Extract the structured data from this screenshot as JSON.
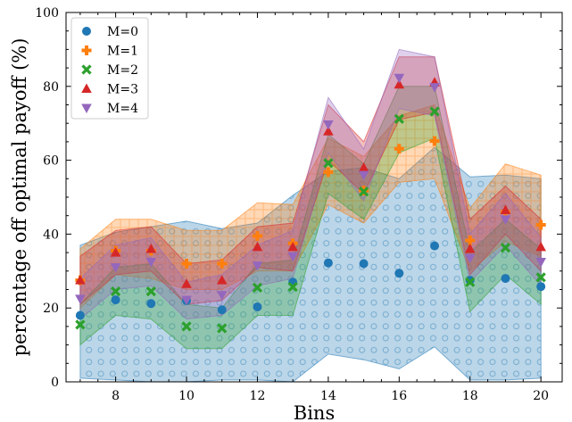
{
  "chart_data": {
    "type": "scatter",
    "xlabel": "Bins",
    "ylabel": "percentage off optimal payoff (%)",
    "xlim": [
      6.6,
      20.6
    ],
    "ylim": [
      0,
      100
    ],
    "xticks": [
      8,
      10,
      12,
      14,
      16,
      18,
      20
    ],
    "yticks": [
      0,
      20,
      40,
      60,
      80,
      100
    ],
    "x": [
      7,
      8,
      9,
      10,
      11,
      12,
      13,
      14,
      15,
      16,
      17,
      18,
      19,
      20
    ],
    "legend_position": "top-left",
    "grid": false,
    "series": [
      {
        "name": "M=0",
        "color": "#1f77b4",
        "marker": "circle",
        "values": [
          18,
          22.2,
          21.2,
          22,
          19.5,
          20.3,
          27,
          32.2,
          32,
          29.4,
          36.8,
          27.5,
          28,
          25.8
        ],
        "lower": [
          1,
          0.5,
          0,
          0,
          0.5,
          0.5,
          0,
          7.5,
          6,
          3.5,
          9.5,
          0.5,
          0.5,
          1
        ],
        "upper": [
          37,
          40.5,
          42,
          43.5,
          41.5,
          43,
          50.5,
          57,
          58,
          55,
          63.5,
          55.5,
          56,
          55
        ]
      },
      {
        "name": "M=1",
        "color": "#ff7f0e",
        "marker": "plus",
        "values": [
          27.5,
          35.5,
          35.5,
          32,
          32,
          39.5,
          37.5,
          56.8,
          51.8,
          63.1,
          65.2,
          38.3,
          46,
          42.5
        ],
        "lower": [
          20,
          29,
          28,
          25,
          25,
          30,
          30,
          48,
          43,
          54,
          55,
          30,
          38,
          34
        ],
        "upper": [
          36,
          44,
          44,
          41,
          41,
          48.5,
          48,
          66,
          61,
          72,
          75,
          47,
          59,
          56
        ]
      },
      {
        "name": "M=2",
        "color": "#2ca02c",
        "marker": "x",
        "values": [
          15.5,
          24.5,
          24.5,
          15,
          14.5,
          25.5,
          25.7,
          59.2,
          51.5,
          71.2,
          73.2,
          27,
          36.3,
          28.3
        ],
        "lower": [
          10,
          18,
          17,
          9,
          9,
          18,
          18,
          51,
          44,
          62,
          66,
          19,
          29,
          21
        ],
        "upper": [
          21,
          31,
          32,
          21,
          20,
          32,
          33,
          67,
          59,
          80,
          80,
          35,
          44,
          36
        ]
      },
      {
        "name": "M=3",
        "color": "#d62728",
        "marker": "triangle-up",
        "values": [
          27.5,
          35,
          36,
          26.5,
          27.5,
          36.5,
          36.5,
          67.8,
          58,
          80.5,
          81.1,
          36,
          46.5,
          36.5
        ],
        "lower": [
          21,
          29,
          30,
          21,
          22,
          31,
          30,
          60,
          51,
          71,
          73,
          29,
          40,
          30
        ],
        "upper": [
          34,
          41,
          42,
          32,
          33,
          42,
          43,
          75,
          65,
          88,
          88,
          44,
          53,
          44
        ]
      },
      {
        "name": "M=4",
        "color": "#9467bd",
        "marker": "triangle-down",
        "values": [
          22.5,
          31,
          32.5,
          22.2,
          23.5,
          31.5,
          34,
          69.7,
          56,
          82.3,
          79.8,
          33.5,
          44,
          32.5
        ],
        "lower": [
          17,
          25,
          26,
          17,
          18,
          26,
          28,
          62,
          49,
          74,
          72,
          27,
          37,
          26
        ],
        "upper": [
          28,
          37,
          39,
          27,
          29,
          37,
          41,
          77,
          63,
          90,
          88,
          40,
          51,
          39
        ]
      }
    ]
  }
}
